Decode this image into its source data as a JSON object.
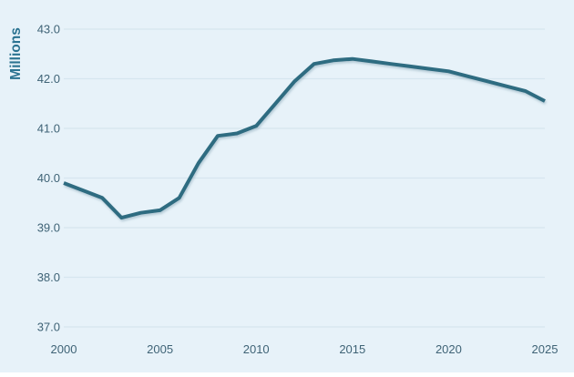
{
  "chart_data": {
    "type": "line",
    "title": "",
    "ylabel": "Millions",
    "xlabel": "",
    "x": [
      2000,
      2001,
      2002,
      2003,
      2004,
      2005,
      2006,
      2007,
      2008,
      2009,
      2010,
      2011,
      2012,
      2013,
      2014,
      2015,
      2016,
      2017,
      2018,
      2019,
      2020,
      2021,
      2022,
      2023,
      2024,
      2025
    ],
    "values": [
      39.9,
      39.75,
      39.6,
      39.2,
      39.3,
      39.35,
      39.6,
      40.3,
      40.85,
      40.9,
      41.05,
      41.5,
      41.95,
      42.3,
      42.37,
      42.4,
      42.35,
      42.3,
      42.25,
      42.2,
      42.15,
      42.05,
      41.95,
      41.85,
      41.75,
      41.55
    ],
    "ylim": [
      37.0,
      43.0
    ],
    "ytick_labels": [
      "43.0",
      "42.0",
      "41.0",
      "40.0",
      "39.0",
      "38.0",
      "37.0"
    ],
    "ytick_values": [
      43.0,
      42.0,
      41.0,
      40.0,
      39.0,
      38.0,
      37.0
    ],
    "xtick_labels": [
      "2000",
      "2005",
      "2010",
      "2015",
      "2020",
      "2025"
    ],
    "xtick_values": [
      2000,
      2005,
      2010,
      2015,
      2020,
      2025
    ],
    "grid": "horizontal-only",
    "legend": "none",
    "colors": {
      "background": "#e7f2f9",
      "line": "#2f6c81",
      "gridline": "#d6e6ef",
      "tick_label": "#3f6376",
      "axis_title": "#2b7391",
      "line_shadow": "#7fa0b0"
    }
  }
}
